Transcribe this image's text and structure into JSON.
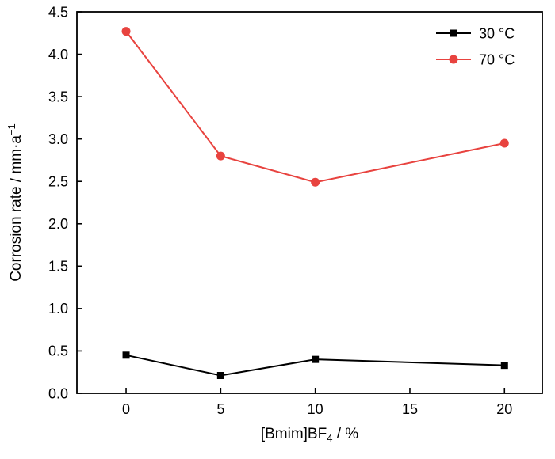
{
  "figure": {
    "background": "#ffffff",
    "frame_color": "#000000"
  },
  "chart_data": {
    "type": "line",
    "x": [
      0,
      5,
      10,
      20
    ],
    "series": [
      {
        "name": "30 °C",
        "color": "#000000",
        "marker": "square",
        "values": [
          0.45,
          0.21,
          0.4,
          0.33
        ]
      },
      {
        "name": "70 °C",
        "color": "#e8433f",
        "marker": "circle",
        "values": [
          4.27,
          2.8,
          2.49,
          2.95
        ]
      }
    ],
    "title": "",
    "xlabel": "[Bmim]BF₄ / %",
    "xlabel_parts": {
      "main": "[Bmim]BF",
      "sub": "4",
      "suffix": " / %"
    },
    "ylabel": "Corrosion rate / mm·a⁻¹",
    "ylabel_parts": {
      "main": "Corrosion rate / mm·a",
      "sup": "−1"
    },
    "xlim": [
      -2.6,
      22.0
    ],
    "ylim": [
      0,
      4.5
    ],
    "x_ticks": [
      0,
      5,
      10,
      15,
      20
    ],
    "y_ticks": [
      0.0,
      0.5,
      1.0,
      1.5,
      2.0,
      2.5,
      3.0,
      3.5,
      4.0,
      4.5
    ],
    "y_tick_decimals": 1,
    "grid": false,
    "legend_position": "top-right"
  }
}
